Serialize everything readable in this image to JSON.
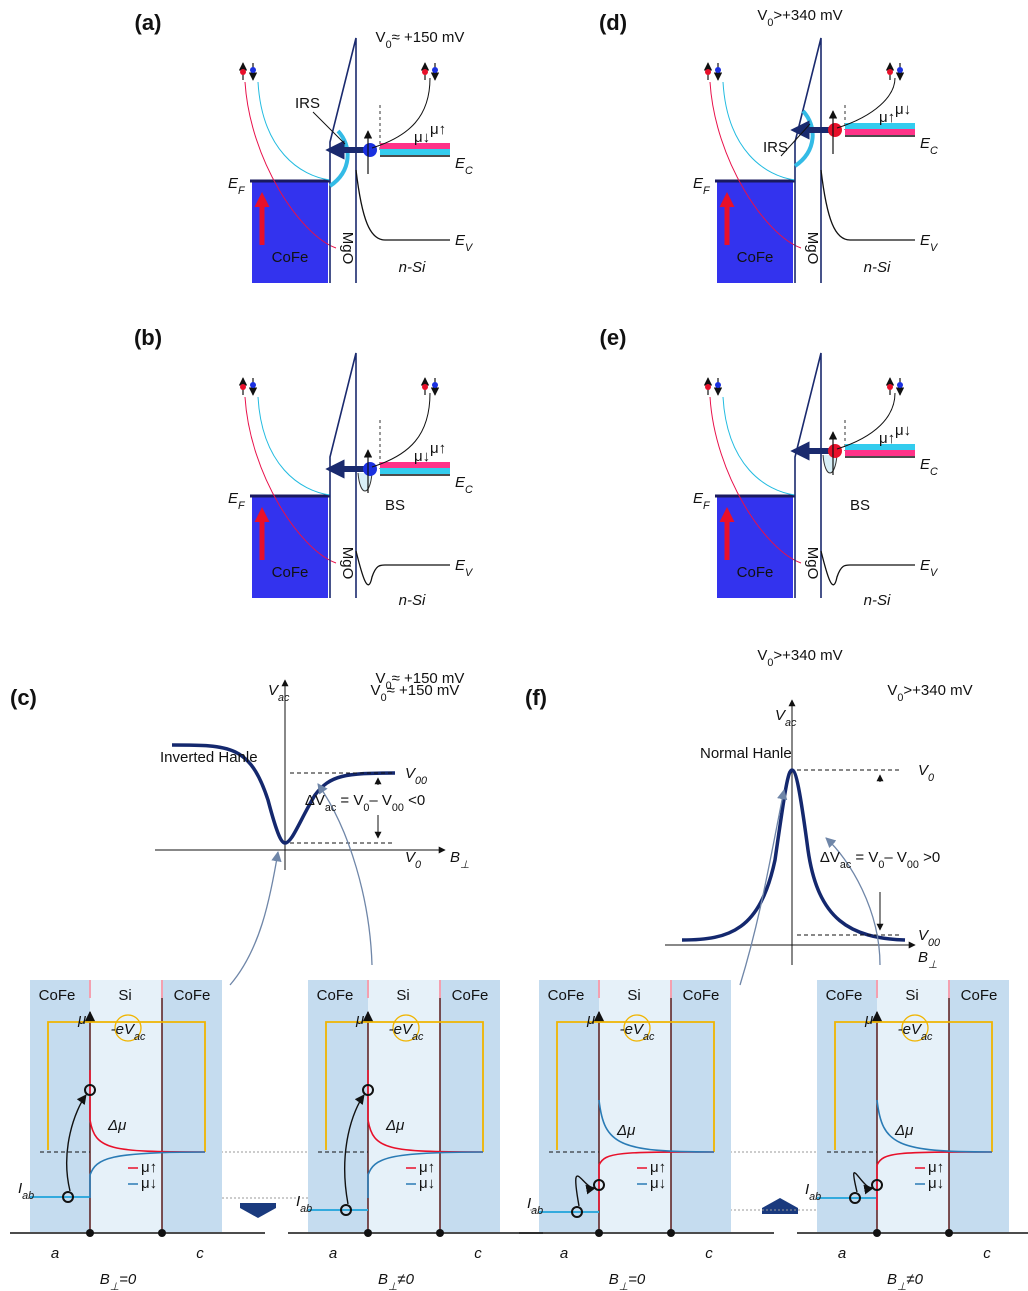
{
  "band_panels": [
    {
      "label": "(a)",
      "bias": [
        "V",
        "0",
        "≈ +150 mV"
      ],
      "state": "IRS",
      "fermi": [
        "E",
        "F"
      ],
      "conduction": [
        "E",
        "C"
      ],
      "valence": [
        "E",
        "V"
      ],
      "metal": "CoFe",
      "barrier": "MgO",
      "semiconductor": "n-Si",
      "spin_levels": [
        "μ↓",
        "μ↑"
      ]
    },
    {
      "label": "(b)",
      "bias": [
        "V",
        "0",
        "≈ +150 mV"
      ],
      "state": "BS",
      "fermi": [
        "E",
        "F"
      ],
      "conduction": [
        "E",
        "C"
      ],
      "valence": [
        "E",
        "V"
      ],
      "metal": "CoFe",
      "barrier": "MgO",
      "semiconductor": "n-Si",
      "spin_levels": [
        "μ↓",
        "μ↑"
      ]
    },
    {
      "label": "(d)",
      "bias": [
        "V",
        "0",
        ">+340 mV"
      ],
      "state": "IRS",
      "fermi": [
        "E",
        "F"
      ],
      "conduction": [
        "E",
        "C"
      ],
      "valence": [
        "E",
        "V"
      ],
      "metal": "CoFe",
      "barrier": "MgO",
      "semiconductor": "n-Si",
      "spin_levels": [
        "μ↑",
        "μ↓"
      ]
    },
    {
      "label": "(e)",
      "bias": [
        "V",
        "0",
        ">+340 mV"
      ],
      "state": "BS",
      "fermi": [
        "E",
        "F"
      ],
      "conduction": [
        "E",
        "C"
      ],
      "valence": [
        "E",
        "V"
      ],
      "metal": "CoFe",
      "barrier": "MgO",
      "semiconductor": "n-Si",
      "spin_levels": [
        "μ↑",
        "μ↓"
      ]
    }
  ],
  "hanle_panels": [
    {
      "label": "(c)",
      "bias": [
        "V",
        "0",
        "≈ +150 mV"
      ],
      "title": "Inverted Hanle",
      "y_axis": [
        "V",
        "ac"
      ],
      "x_axis": [
        "B",
        "⊥"
      ],
      "upper_level": [
        "V",
        "00"
      ],
      "lower_level": [
        "V",
        "0"
      ],
      "relation": [
        "ΔV",
        "ac",
        " = V",
        "0",
        "– V",
        "00",
        " <0"
      ]
    },
    {
      "label": "(f)",
      "bias": [
        "V",
        "0",
        ">+340 mV"
      ],
      "title": "Normal Hanle",
      "y_axis": [
        "V",
        "ac"
      ],
      "x_axis": [
        "B",
        "⊥"
      ],
      "upper_level": [
        "V",
        "0"
      ],
      "lower_level": [
        "V",
        "00"
      ],
      "relation": [
        "ΔV",
        "ac",
        " = V",
        "0",
        "– V",
        "00",
        " >0"
      ]
    }
  ],
  "device_panels": [
    {
      "regions": [
        "CoFe",
        "Si",
        "CoFe"
      ],
      "axis": "μ",
      "signal": [
        "-eV",
        "ac"
      ],
      "splitting": "Δμ",
      "current": [
        "I",
        "ab"
      ],
      "legend": [
        "μ↑",
        "μ↓"
      ],
      "ends": [
        "a",
        "c"
      ],
      "field": [
        "B",
        "⊥",
        "=0"
      ]
    },
    {
      "regions": [
        "CoFe",
        "Si",
        "CoFe"
      ],
      "axis": "μ",
      "signal": [
        "-eV",
        "ac"
      ],
      "splitting": "Δμ",
      "current": [
        "I",
        "ab"
      ],
      "legend": [
        "μ↑",
        "μ↓"
      ],
      "ends": [
        "a",
        "c"
      ],
      "field": [
        "B",
        "⊥",
        "≠0"
      ]
    },
    {
      "regions": [
        "CoFe",
        "Si",
        "CoFe"
      ],
      "axis": "μ",
      "signal": [
        "-eV",
        "ac"
      ],
      "splitting": "Δμ",
      "current": [
        "I",
        "ab"
      ],
      "legend": [
        "μ↑",
        "μ↓"
      ],
      "ends": [
        "a",
        "c"
      ],
      "field": [
        "B",
        "⊥",
        "=0"
      ]
    },
    {
      "regions": [
        "CoFe",
        "Si",
        "CoFe"
      ],
      "axis": "μ",
      "signal": [
        "-eV",
        "ac"
      ],
      "splitting": "Δμ",
      "current": [
        "I",
        "ab"
      ],
      "legend": [
        "μ↑",
        "μ↓"
      ],
      "ends": [
        "a",
        "c"
      ],
      "field": [
        "B",
        "⊥",
        "≠0"
      ]
    }
  ]
}
